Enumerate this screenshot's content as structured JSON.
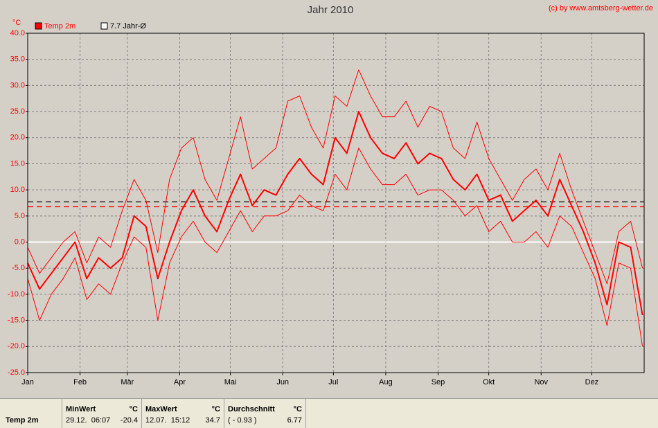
{
  "chart_data": {
    "type": "line",
    "title": "Jahr 2010",
    "credit": "(c) by www.amtsberg-wetter.de",
    "y_unit": "°C",
    "x": [
      0,
      7,
      14,
      21,
      28,
      35,
      42,
      49,
      56,
      63,
      70,
      77,
      84,
      91,
      98,
      105,
      112,
      119,
      126,
      133,
      140,
      147,
      154,
      161,
      168,
      175,
      182,
      189,
      196,
      203,
      210,
      217,
      224,
      231,
      238,
      245,
      252,
      259,
      266,
      273,
      280,
      287,
      294,
      301,
      308,
      315,
      322,
      329,
      336,
      343,
      350,
      357,
      364
    ],
    "xlim": [
      0,
      365
    ],
    "xticks": [
      {
        "value": 0,
        "label": "Jan"
      },
      {
        "value": 31,
        "label": "Feb"
      },
      {
        "value": 59,
        "label": "Mär"
      },
      {
        "value": 90,
        "label": "Apr"
      },
      {
        "value": 120,
        "label": "Mai"
      },
      {
        "value": 151,
        "label": "Jun"
      },
      {
        "value": 181,
        "label": "Jul"
      },
      {
        "value": 212,
        "label": "Aug"
      },
      {
        "value": 243,
        "label": "Sep"
      },
      {
        "value": 273,
        "label": "Okt"
      },
      {
        "value": 304,
        "label": "Nov"
      },
      {
        "value": 334,
        "label": "Dez"
      }
    ],
    "ylim": [
      -25,
      40
    ],
    "yticks": [
      {
        "value": 40,
        "label": "40.0"
      },
      {
        "value": 35,
        "label": "35.0"
      },
      {
        "value": 30,
        "label": "30.0"
      },
      {
        "value": 25,
        "label": "25.0"
      },
      {
        "value": 20,
        "label": "20.0"
      },
      {
        "value": 15,
        "label": "15.0"
      },
      {
        "value": 10,
        "label": "10.0"
      },
      {
        "value": 5,
        "label": "5.0"
      },
      {
        "value": 0,
        "label": "0.0"
      },
      {
        "value": -5,
        "label": "-5.0"
      },
      {
        "value": -10,
        "label": "-10.0"
      },
      {
        "value": -15,
        "label": "-15.0"
      },
      {
        "value": -20,
        "label": "-20.0"
      },
      {
        "value": -25,
        "label": "-25.0"
      }
    ],
    "grid": true,
    "series": [
      {
        "name": "Temp 2m",
        "color": "#ff0000",
        "width": 2,
        "values": [
          -4,
          -9,
          -6,
          -3,
          0,
          -7,
          -3,
          -5,
          -3,
          5,
          3,
          -7,
          0,
          6,
          10,
          5,
          2,
          8,
          13,
          7,
          10,
          9,
          13,
          16,
          13,
          11,
          20,
          17,
          25,
          20,
          17,
          16,
          19,
          15,
          17,
          16,
          12,
          10,
          13,
          8,
          9,
          4,
          6,
          8,
          5,
          12,
          7,
          2,
          -4,
          -12,
          0,
          -1,
          -14
        ]
      },
      {
        "color": "#ff0000",
        "width": 1,
        "values": [
          -1,
          -6,
          -3,
          0,
          2,
          -4,
          1,
          -1,
          6,
          12,
          8,
          -2,
          12,
          18,
          20,
          12,
          8,
          16,
          24,
          14,
          16,
          18,
          27,
          28,
          22,
          18,
          28,
          26,
          33,
          28,
          24,
          24,
          27,
          22,
          26,
          25,
          18,
          16,
          23,
          16,
          12,
          8,
          12,
          14,
          10,
          17,
          10,
          4,
          -2,
          -8,
          2,
          4,
          -5
        ]
      },
      {
        "color": "#ff0000",
        "width": 1,
        "values": [
          -7,
          -15,
          -10,
          -7,
          -3,
          -11,
          -8,
          -10,
          -4,
          1,
          -1,
          -15,
          -4,
          1,
          4,
          0,
          -2,
          2,
          6,
          2,
          5,
          5,
          6,
          9,
          7,
          6,
          13,
          10,
          18,
          14,
          11,
          11,
          13,
          9,
          10,
          10,
          8,
          5,
          7,
          2,
          4,
          0,
          0,
          2,
          -1,
          5,
          3,
          -2,
          -7,
          -16,
          -4,
          -5,
          -20
        ]
      }
    ],
    "reference_line": {
      "value": 7.7,
      "label": "7.7 Jahr-Ø",
      "color": "#000000"
    }
  },
  "stats": {
    "row_label": "Temp 2m",
    "columns": [
      {
        "header": "MinWert",
        "unit": "°C",
        "time": "29.12.  06:07",
        "value": -20.4
      },
      {
        "header": "MaxWert",
        "unit": "°C",
        "time": "12.07.  15:12",
        "value": 34.7
      },
      {
        "header": "Durchschnitt",
        "unit": "°C",
        "time": "( - 0.93 )",
        "value": 6.77,
        "color": "#ff0000"
      }
    ]
  }
}
